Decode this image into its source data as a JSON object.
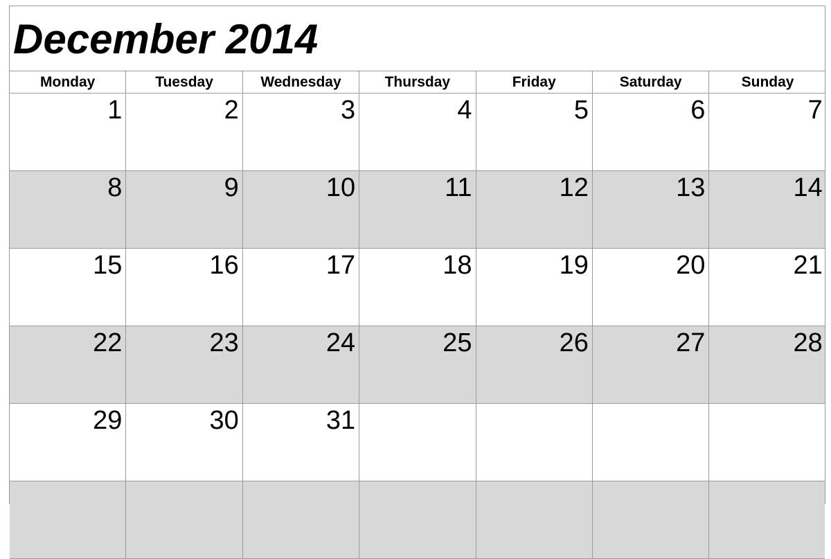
{
  "calendar": {
    "title": "December 2014",
    "weekdays": [
      "Monday",
      "Tuesday",
      "Wednesday",
      "Thursday",
      "Friday",
      "Saturday",
      "Sunday"
    ],
    "weeks": [
      [
        "1",
        "2",
        "3",
        "4",
        "5",
        "6",
        "7"
      ],
      [
        "8",
        "9",
        "10",
        "11",
        "12",
        "13",
        "14"
      ],
      [
        "15",
        "16",
        "17",
        "18",
        "19",
        "20",
        "21"
      ],
      [
        "22",
        "23",
        "24",
        "25",
        "26",
        "27",
        "28"
      ],
      [
        "29",
        "30",
        "31",
        "",
        "",
        "",
        ""
      ],
      [
        "",
        "",
        "",
        "",
        "",
        "",
        ""
      ]
    ],
    "colors": {
      "shaded_row": "#d8d8d8",
      "grid_line": "#9a9a9a",
      "text": "#000000"
    }
  }
}
